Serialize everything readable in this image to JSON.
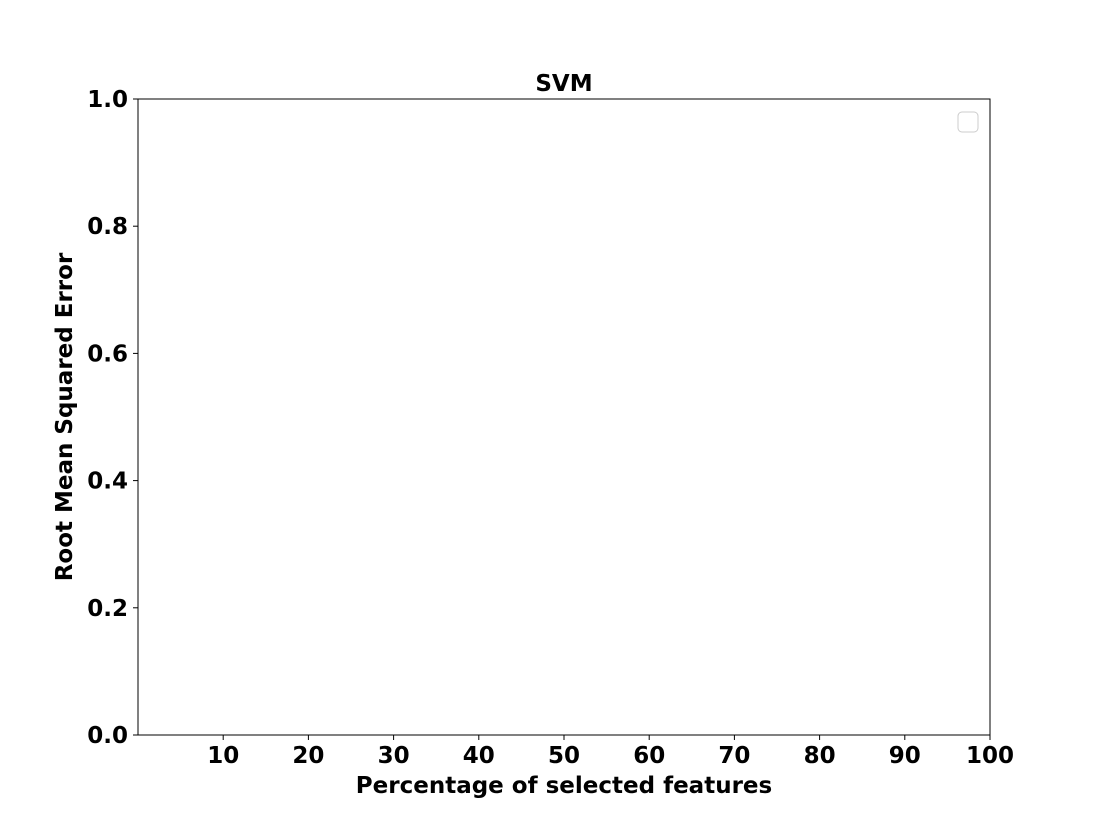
{
  "chart_data": {
    "type": "line",
    "title": "SVM",
    "xlabel": "Percentage of selected features",
    "ylabel": "Root Mean Squared Error",
    "xlim": [
      0,
      100
    ],
    "ylim": [
      0.0,
      1.0
    ],
    "x_ticks": [
      10,
      20,
      30,
      40,
      50,
      60,
      70,
      80,
      90,
      100
    ],
    "x_tick_labels": [
      "10",
      "20",
      "30",
      "40",
      "50",
      "60",
      "70",
      "80",
      "90",
      "100"
    ],
    "y_ticks": [
      0.0,
      0.2,
      0.4,
      0.6,
      0.8,
      1.0
    ],
    "y_tick_labels": [
      "0.0",
      "0.2",
      "0.4",
      "0.6",
      "0.8",
      "1.0"
    ],
    "series": [],
    "legend": {
      "placement": "upper right",
      "entries": []
    },
    "grid": false
  },
  "colors": {
    "background": "#ffffff",
    "axes": "#000000",
    "legend_border": "#cccccc"
  }
}
